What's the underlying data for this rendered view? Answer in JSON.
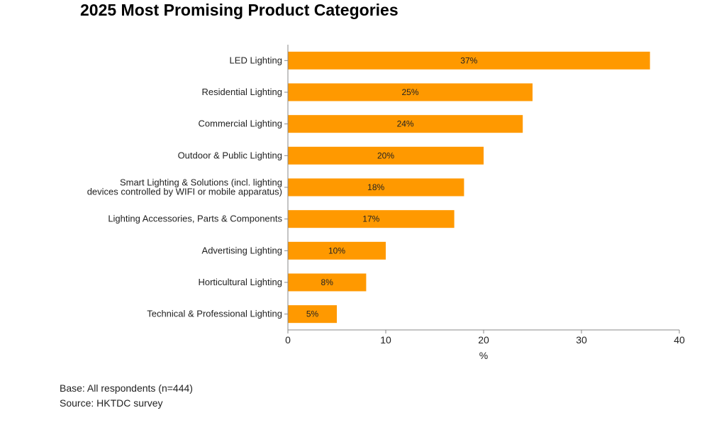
{
  "chart_data": {
    "type": "bar",
    "orientation": "horizontal",
    "title": "2025 Most Promising Product Categories",
    "categories": [
      "LED Lighting",
      "Residential Lighting",
      "Commercial Lighting",
      "Outdoor & Public Lighting",
      "Smart Lighting & Solutions (incl. lighting devices controlled by WIFI or mobile apparatus)",
      "Lighting Accessories, Parts & Components",
      "Advertising Lighting",
      "Horticultural Lighting",
      "Technical & Professional Lighting"
    ],
    "category_lines": [
      [
        "LED Lighting"
      ],
      [
        "Residential Lighting"
      ],
      [
        "Commercial Lighting"
      ],
      [
        "Outdoor & Public Lighting"
      ],
      [
        "Smart Lighting & Solutions (incl. lighting",
        "devices controlled by WIFI or mobile apparatus)"
      ],
      [
        "Lighting Accessories, Parts & Components"
      ],
      [
        "Advertising Lighting"
      ],
      [
        "Horticultural Lighting"
      ],
      [
        "Technical & Professional Lighting"
      ]
    ],
    "values": [
      37,
      25,
      24,
      20,
      18,
      17,
      10,
      8,
      5
    ],
    "data_labels": [
      "37%",
      "25%",
      "24%",
      "20%",
      "18%",
      "17%",
      "10%",
      "8%",
      "5%"
    ],
    "xlabel": "%",
    "ylabel": "",
    "xlim": [
      0,
      40
    ],
    "xticks": [
      0,
      10,
      20,
      30,
      40
    ],
    "grid": false,
    "bar_color": "#ff9900"
  },
  "notes": {
    "base": "Base: All respondents (n=444)",
    "source": "Source: HKTDC survey"
  }
}
